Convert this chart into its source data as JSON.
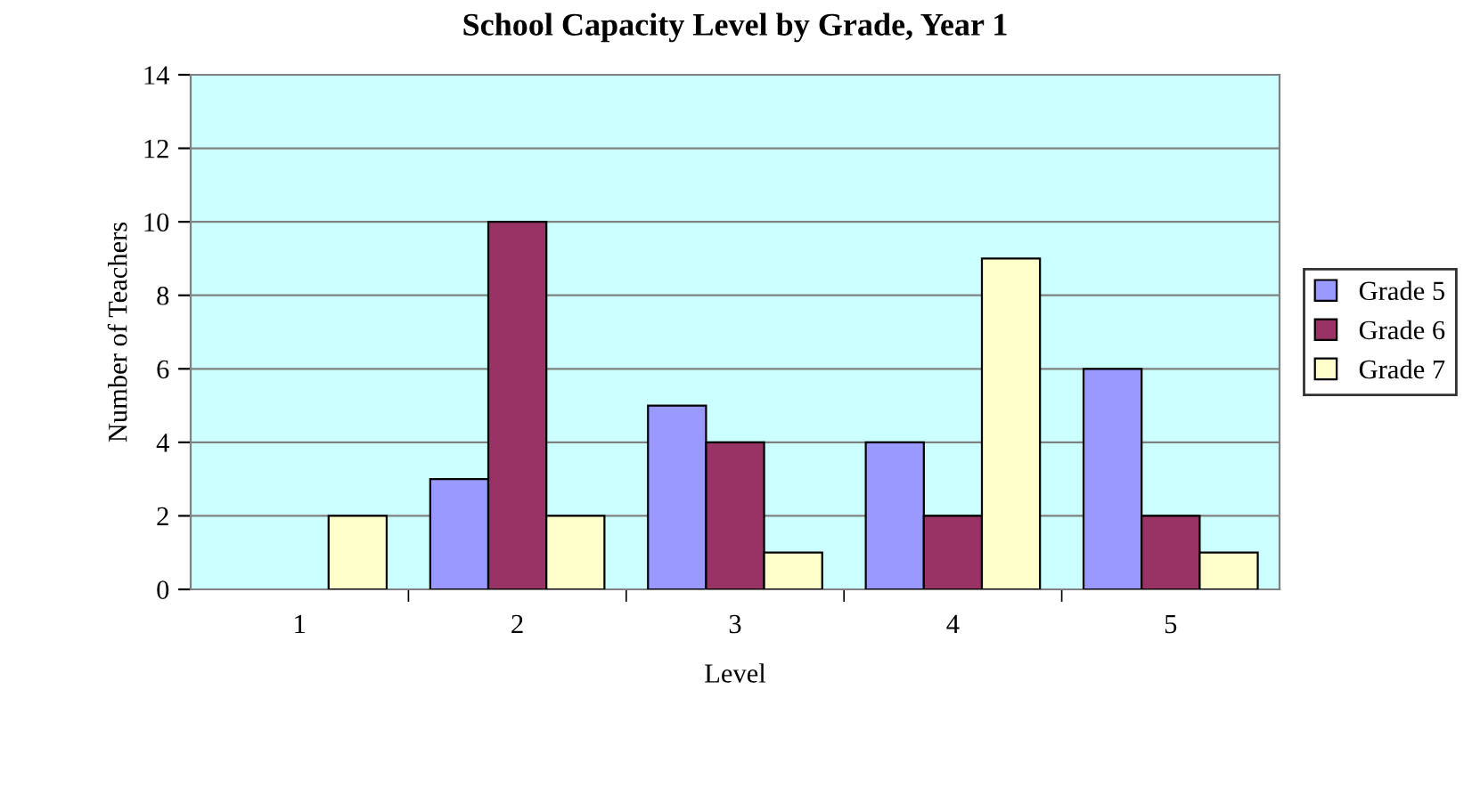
{
  "chart_data": {
    "type": "bar",
    "title": "School Capacity Level by Grade, Year 1",
    "xlabel": "Level",
    "ylabel": "Number of Teachers",
    "categories": [
      "1",
      "2",
      "3",
      "4",
      "5"
    ],
    "series": [
      {
        "name": "Grade 5",
        "color": "#9999ff",
        "values": [
          0,
          3,
          5,
          4,
          6
        ]
      },
      {
        "name": "Grade 6",
        "color": "#993366",
        "values": [
          0,
          10,
          4,
          2,
          2
        ]
      },
      {
        "name": "Grade 7",
        "color": "#ffffcc",
        "values": [
          2,
          2,
          1,
          9,
          1
        ]
      }
    ],
    "ylim": [
      0,
      14
    ],
    "yticks": [
      0,
      2,
      4,
      6,
      8,
      10,
      12,
      14
    ],
    "grid": "y",
    "legend": "right"
  }
}
